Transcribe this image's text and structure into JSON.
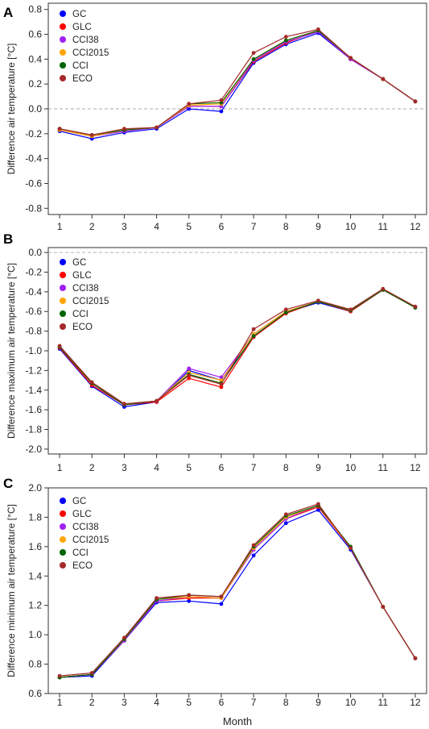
{
  "figure": {
    "xlabel": "Month"
  },
  "chart_data": [
    {
      "type": "line",
      "panel": "A",
      "ylabel": "Difference air temperature [°C]",
      "x": [
        1,
        2,
        3,
        4,
        5,
        6,
        7,
        8,
        9,
        10,
        11,
        12
      ],
      "ylim": [
        -0.85,
        0.85
      ],
      "yticks": [
        -0.8,
        -0.6,
        -0.4,
        -0.2,
        0.0,
        0.2,
        0.4,
        0.6,
        0.8
      ],
      "reference_line": 0.0,
      "legend_position": "top-left",
      "series": [
        {
          "name": "GC",
          "color": "#0000ff",
          "values": [
            -0.18,
            -0.24,
            -0.19,
            -0.16,
            0.0,
            -0.02,
            0.37,
            0.52,
            0.61,
            0.4,
            0.24,
            0.06
          ]
        },
        {
          "name": "GLC",
          "color": "#ff0000",
          "values": [
            -0.17,
            -0.22,
            -0.18,
            -0.15,
            0.02,
            0.02,
            0.38,
            0.53,
            0.63,
            0.4,
            0.24,
            0.06
          ]
        },
        {
          "name": "CCI38",
          "color": "#a020f0",
          "values": [
            -0.17,
            -0.22,
            -0.18,
            -0.15,
            0.02,
            0.02,
            0.39,
            0.54,
            0.62,
            0.4,
            0.24,
            0.06
          ]
        },
        {
          "name": "CCI2015",
          "color": "#ffa500",
          "values": [
            -0.17,
            -0.22,
            -0.17,
            -0.15,
            0.03,
            0.04,
            0.4,
            0.55,
            0.63,
            0.41,
            0.24,
            0.06
          ]
        },
        {
          "name": "CCI",
          "color": "#006400",
          "values": [
            -0.16,
            -0.21,
            -0.17,
            -0.15,
            0.04,
            0.05,
            0.4,
            0.55,
            0.63,
            0.41,
            0.24,
            0.06
          ]
        },
        {
          "name": "ECO",
          "color": "#a52a2a",
          "values": [
            -0.16,
            -0.21,
            -0.16,
            -0.15,
            0.04,
            0.07,
            0.45,
            0.58,
            0.64,
            0.41,
            0.24,
            0.06
          ]
        }
      ]
    },
    {
      "type": "line",
      "panel": "B",
      "ylabel": "Difference maximum air temperature [°C]",
      "x": [
        1,
        2,
        3,
        4,
        5,
        6,
        7,
        8,
        9,
        10,
        11,
        12
      ],
      "ylim": [
        -2.05,
        0.05
      ],
      "yticks": [
        -2.0,
        -1.8,
        -1.6,
        -1.4,
        -1.2,
        -1.0,
        -0.8,
        -0.6,
        -0.4,
        -0.2,
        0.0
      ],
      "reference_line": 0.0,
      "legend_position": "top-left",
      "series": [
        {
          "name": "GC",
          "color": "#0000ff",
          "values": [
            -0.98,
            -1.36,
            -1.57,
            -1.52,
            -1.2,
            -1.3,
            -0.86,
            -0.61,
            -0.51,
            -0.6,
            -0.38,
            -0.56
          ]
        },
        {
          "name": "GLC",
          "color": "#ff0000",
          "values": [
            -0.97,
            -1.35,
            -1.55,
            -1.52,
            -1.28,
            -1.37,
            -0.86,
            -0.62,
            -0.5,
            -0.6,
            -0.38,
            -0.56
          ]
        },
        {
          "name": "CCI38",
          "color": "#a020f0",
          "values": [
            -0.96,
            -1.33,
            -1.55,
            -1.51,
            -1.18,
            -1.27,
            -0.83,
            -0.6,
            -0.5,
            -0.59,
            -0.38,
            -0.56
          ]
        },
        {
          "name": "CCI2015",
          "color": "#ffa500",
          "values": [
            -0.96,
            -1.33,
            -1.54,
            -1.51,
            -1.22,
            -1.3,
            -0.83,
            -0.6,
            -0.5,
            -0.59,
            -0.38,
            -0.56
          ]
        },
        {
          "name": "CCI",
          "color": "#006400",
          "values": [
            -0.96,
            -1.33,
            -1.55,
            -1.51,
            -1.24,
            -1.33,
            -0.85,
            -0.61,
            -0.5,
            -0.59,
            -0.38,
            -0.56
          ]
        },
        {
          "name": "ECO",
          "color": "#a52a2a",
          "values": [
            -0.95,
            -1.32,
            -1.54,
            -1.51,
            -1.25,
            -1.34,
            -0.78,
            -0.58,
            -0.49,
            -0.58,
            -0.37,
            -0.55
          ]
        }
      ]
    },
    {
      "type": "line",
      "panel": "C",
      "ylabel": "Difference minimum air temperature [°C]",
      "x": [
        1,
        2,
        3,
        4,
        5,
        6,
        7,
        8,
        9,
        10,
        11,
        12
      ],
      "ylim": [
        0.6,
        2.0
      ],
      "yticks": [
        0.6,
        0.8,
        1.0,
        1.2,
        1.4,
        1.6,
        1.8,
        2.0
      ],
      "legend_position": "top-left",
      "series": [
        {
          "name": "GC",
          "color": "#0000ff",
          "values": [
            0.71,
            0.72,
            0.96,
            1.22,
            1.23,
            1.21,
            1.54,
            1.76,
            1.85,
            1.58,
            1.19,
            0.84
          ]
        },
        {
          "name": "GLC",
          "color": "#ff0000",
          "values": [
            0.71,
            0.73,
            0.96,
            1.23,
            1.25,
            1.25,
            1.58,
            1.79,
            1.87,
            1.59,
            1.19,
            0.84
          ]
        },
        {
          "name": "CCI38",
          "color": "#a020f0",
          "values": [
            0.71,
            0.73,
            0.96,
            1.23,
            1.26,
            1.25,
            1.58,
            1.79,
            1.88,
            1.59,
            1.19,
            0.84
          ]
        },
        {
          "name": "CCI2015",
          "color": "#ffa500",
          "values": [
            0.71,
            0.73,
            0.97,
            1.24,
            1.26,
            1.25,
            1.59,
            1.8,
            1.88,
            1.59,
            1.19,
            0.84
          ]
        },
        {
          "name": "CCI",
          "color": "#006400",
          "values": [
            0.71,
            0.73,
            0.97,
            1.24,
            1.27,
            1.26,
            1.6,
            1.81,
            1.88,
            1.6,
            1.19,
            0.84
          ]
        },
        {
          "name": "ECO",
          "color": "#a52a2a",
          "values": [
            0.72,
            0.74,
            0.98,
            1.25,
            1.27,
            1.26,
            1.61,
            1.82,
            1.89,
            1.59,
            1.19,
            0.84
          ]
        }
      ]
    }
  ]
}
